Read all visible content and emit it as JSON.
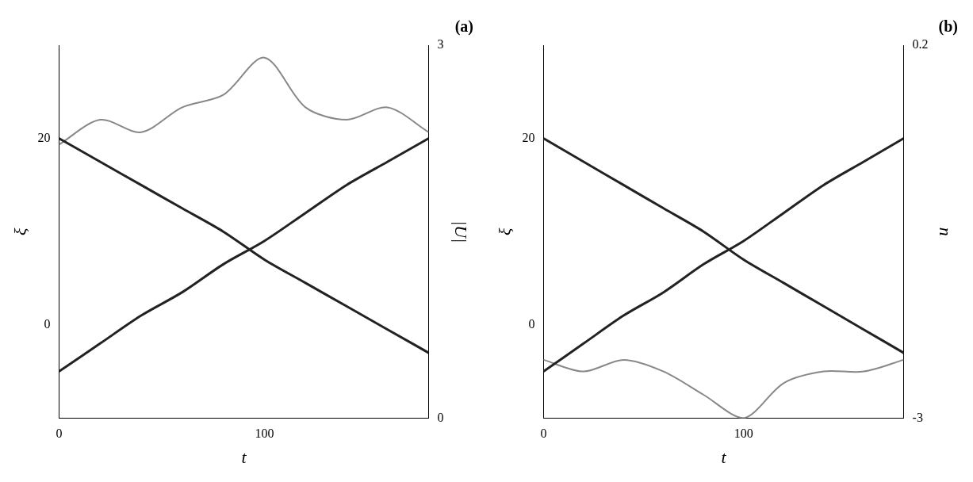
{
  "chart_data": [
    {
      "type": "line",
      "title": "(a)",
      "x_label": "t",
      "y_label": "ξ",
      "y2_label": "|U|",
      "x": [
        0,
        20,
        40,
        60,
        80,
        100,
        120,
        140,
        160,
        180
      ],
      "xlim": [
        0,
        180
      ],
      "xticks": [
        0,
        100
      ],
      "ylim": [
        -10,
        30
      ],
      "yticks": [
        0,
        20
      ],
      "y2lim": [
        0,
        3
      ],
      "y2ticks": [
        0,
        3
      ],
      "grid": false,
      "series": [
        {
          "color": "#222222",
          "values": [
            20,
            17.5,
            15,
            12.5,
            10,
            7,
            4.5,
            2,
            -0.5,
            -3
          ]
        },
        {
          "color": "#222222",
          "values": [
            -5,
            -2,
            1,
            3.5,
            6.5,
            9,
            12,
            15,
            17.5,
            20
          ]
        },
        {
          "color": "#888888",
          "axis": "y2",
          "values": [
            2.2,
            2.4,
            2.3,
            2.5,
            2.6,
            2.9,
            2.5,
            2.4,
            2.5,
            2.3
          ]
        }
      ]
    },
    {
      "type": "line",
      "title": "(b)",
      "x_label": "t",
      "y_label": "ξ",
      "y2_label": "n",
      "x": [
        0,
        20,
        40,
        60,
        80,
        100,
        120,
        140,
        160,
        180
      ],
      "xlim": [
        0,
        180
      ],
      "xticks": [
        0,
        100
      ],
      "ylim": [
        -10,
        30
      ],
      "yticks": [
        0,
        20
      ],
      "y2lim": [
        -3,
        0.2
      ],
      "y2ticks": [
        -3,
        0.2
      ],
      "grid": false,
      "series": [
        {
          "color": "#222222",
          "values": [
            20,
            17.5,
            15,
            12.5,
            10,
            7,
            4.5,
            2,
            -0.5,
            -3
          ]
        },
        {
          "color": "#222222",
          "values": [
            -5,
            -2,
            1,
            3.5,
            6.5,
            9,
            12,
            15,
            17.5,
            20
          ]
        },
        {
          "color": "#888888",
          "axis": "y2",
          "values": [
            -2.5,
            -2.6,
            -2.5,
            -2.6,
            -2.8,
            -3,
            -2.7,
            -2.6,
            -2.6,
            -2.5
          ]
        }
      ]
    }
  ]
}
